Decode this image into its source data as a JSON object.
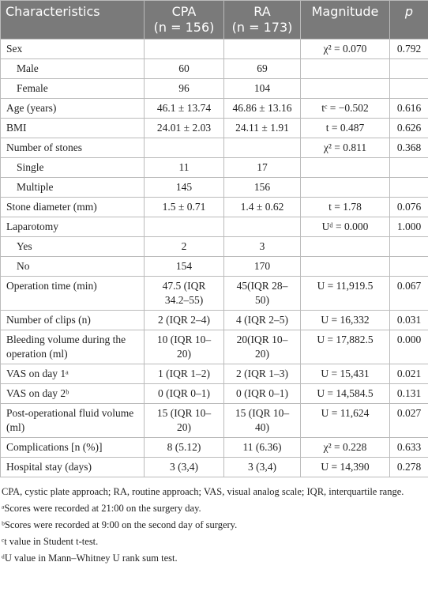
{
  "table": {
    "header": [
      [
        "Characteristics"
      ],
      [
        "CPA",
        "(n = 156)"
      ],
      [
        "RA",
        "(n = 173)"
      ],
      [
        "Magnitude"
      ],
      [
        "p"
      ]
    ],
    "rows": [
      [
        "Sex",
        null,
        null,
        "χ² = 0.070",
        "0.792"
      ],
      [
        "Male",
        "60",
        "69",
        null,
        null
      ],
      [
        "Female",
        "96",
        "104",
        null,
        null
      ],
      [
        "Age (years)",
        "46.1 ± 13.74",
        "46.86 ± 13.16",
        "tᶜ = −0.502",
        "0.616"
      ],
      [
        "BMI",
        "24.01 ± 2.03",
        "24.11 ± 1.91",
        "t = 0.487",
        "0.626"
      ],
      [
        "Number of stones",
        null,
        null,
        "χ² = 0.811",
        "0.368"
      ],
      [
        "Single",
        "11",
        "17",
        null,
        null
      ],
      [
        "Multiple",
        "145",
        "156",
        null,
        null
      ],
      [
        "Stone diameter (mm)",
        "1.5 ± 0.71",
        "1.4 ± 0.62",
        "t = 1.78",
        "0.076"
      ],
      [
        "Laparotomy",
        null,
        null,
        "Uᵈ = 0.000",
        "1.000"
      ],
      [
        "Yes",
        "2",
        "3",
        null,
        null
      ],
      [
        "No",
        "154",
        "170",
        null,
        null
      ],
      [
        "Operation time (min)",
        "47.5 (IQR 34.2–55)",
        "45(IQR 28–50)",
        "U = 11,919.5",
        "0.067"
      ],
      [
        "Number of clips (n)",
        "2 (IQR 2–4)",
        "4 (IQR 2–5)",
        "U = 16,332",
        "0.031"
      ],
      [
        "Bleeding volume during the operation (ml)",
        "10 (IQR 10–20)",
        "20(IQR 10–20)",
        "U = 17,882.5",
        "0.000"
      ],
      [
        "VAS on day 1ᵃ",
        "1 (IQR 1–2)",
        "2 (IQR 1–3)",
        "U = 15,431",
        "0.021"
      ],
      [
        "VAS on day 2ᵇ",
        "0 (IQR 0–1)",
        "0 (IQR 0–1)",
        "U = 14,584.5",
        "0.131"
      ],
      [
        "Post-operational fluid volume (ml)",
        "15 (IQR 10–20)",
        "15 (IQR 10–40)",
        "U = 11,624",
        "0.027"
      ],
      [
        "Complications [n (%)]",
        "8 (5.12)",
        "11 (6.36)",
        "χ² = 0.228",
        "0.633"
      ],
      [
        "Hospital stay (days)",
        "3 (3,4)",
        "3 (3,4)",
        "U = 14,390",
        "0.278"
      ]
    ]
  },
  "notes": [
    "CPA, cystic plate approach; RA, routine approach; VAS, visual analog scale; IQR, interquartile range.",
    "ᵃScores were recorded at 21:00 on the surgery day.",
    "ᵇScores were recorded at 9:00 on the second day of surgery.",
    "ᶜt value in Student t-test.",
    "ᵈU value in Mann–Whitney U rank sum test."
  ]
}
